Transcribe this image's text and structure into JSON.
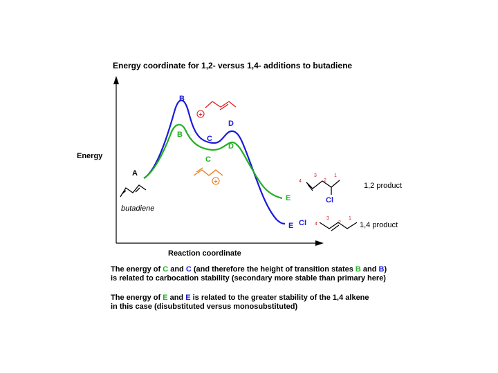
{
  "title": "Energy coordinate for 1,2- versus 1,4- additions to butadiene",
  "axes": {
    "y_label": "Energy",
    "x_label": "Reaction coordinate"
  },
  "points": {
    "A": "A",
    "B_blue": "B",
    "B_green": "B",
    "C_blue": "C",
    "C_green": "C",
    "D_blue": "D",
    "D_green": "D",
    "E_green": "E",
    "E_blue": "E"
  },
  "start_label": "butadiene",
  "cation_charge_top": "+",
  "cation_charge_bottom": "+",
  "products": {
    "p12": {
      "label": "1,2 product",
      "substituent": "Cl",
      "numbers": [
        "4",
        "3",
        "2",
        "1"
      ]
    },
    "p14": {
      "label": "1,4 product",
      "substituent": "Cl",
      "numbers": [
        "4",
        "3",
        "2",
        "1"
      ]
    }
  },
  "caption1": {
    "line1": [
      "The energy of ",
      "C",
      " and ",
      "C",
      " (and therefore the height of transition states ",
      "B",
      " and ",
      "B",
      ")"
    ],
    "line2": "is related to carbocation stability (secondary more stable than primary here)"
  },
  "caption2": {
    "line1": [
      "The energy of ",
      "E",
      " and ",
      "E",
      " is related to the greater stability of the 1,4 alkene"
    ],
    "line2": "in this case (disubstituted versus monosubstituted)"
  },
  "colors": {
    "blue": "#1a1adb",
    "green": "#22b022",
    "red": "#e01a1a",
    "orange": "#e87a1a",
    "black": "#000000"
  }
}
